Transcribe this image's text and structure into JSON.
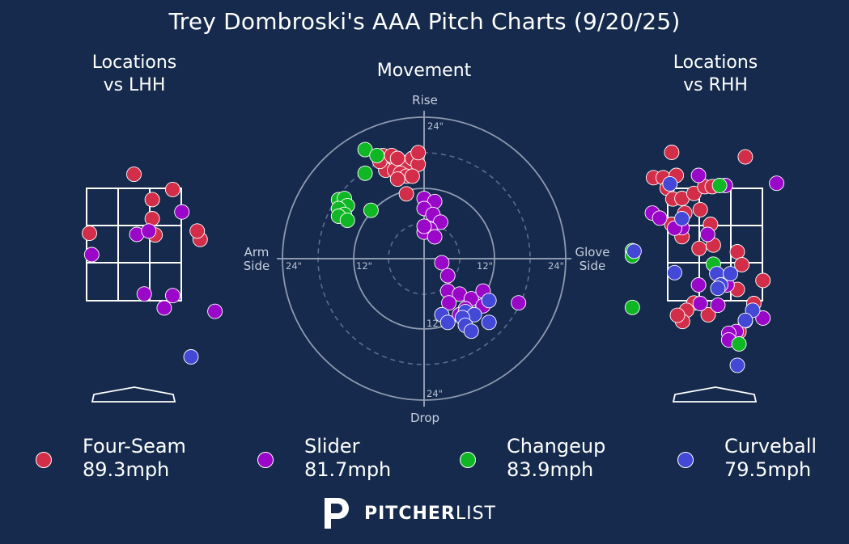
{
  "title": "Trey Dombroski's AAA Pitch Charts (9/20/25)",
  "panels": {
    "lhh_title": "Locations vs LHH",
    "movement_title": "Movement",
    "rhh_title": "Locations vs RHH"
  },
  "colors": {
    "background": "#152a4c",
    "Four-Seam": "#d22d49",
    "Slider": "#9a07c8",
    "Changeup": "#10b724",
    "Curveball": "#4348d6"
  },
  "legend": [
    {
      "pitch": "Four-Seam",
      "speed": "89.3mph"
    },
    {
      "pitch": "Slider",
      "speed": "81.7mph"
    },
    {
      "pitch": "Changeup",
      "speed": "83.9mph"
    },
    {
      "pitch": "Curveball",
      "speed": "79.5mph"
    }
  ],
  "logo": {
    "bold": "PITCHER",
    "light": "LIST",
    "icon": "pitcherlist-p-icon"
  },
  "chart_data": [
    {
      "type": "scatter",
      "name": "locations-vs-lhh",
      "title": "Locations vs LHH",
      "xlim": [
        -2.5,
        2.5
      ],
      "ylim": [
        -0.5,
        5.0
      ],
      "strike_zone": {
        "x": [
          -0.83,
          0.83
        ],
        "y": [
          1.5,
          3.5
        ]
      },
      "points": [
        {
          "pitch": "Four-Seam",
          "x": 0.0,
          "y": 3.75
        },
        {
          "pitch": "Four-Seam",
          "x": 0.68,
          "y": 3.48
        },
        {
          "pitch": "Four-Seam",
          "x": 0.32,
          "y": 3.3
        },
        {
          "pitch": "Four-Seam",
          "x": 0.32,
          "y": 2.96
        },
        {
          "pitch": "Four-Seam",
          "x": 0.37,
          "y": 2.67
        },
        {
          "pitch": "Four-Seam",
          "x": -0.78,
          "y": 2.7
        },
        {
          "pitch": "Four-Seam",
          "x": 1.16,
          "y": 2.59
        },
        {
          "pitch": "Four-Seam",
          "x": 1.11,
          "y": 2.74
        },
        {
          "pitch": "Slider",
          "x": 0.84,
          "y": 3.08
        },
        {
          "pitch": "Slider",
          "x": 0.05,
          "y": 2.68
        },
        {
          "pitch": "Slider",
          "x": 0.26,
          "y": 2.74
        },
        {
          "pitch": "Slider",
          "x": -0.74,
          "y": 2.32
        },
        {
          "pitch": "Slider",
          "x": 0.18,
          "y": 1.62
        },
        {
          "pitch": "Slider",
          "x": 0.68,
          "y": 1.59
        },
        {
          "pitch": "Slider",
          "x": 0.53,
          "y": 1.37
        },
        {
          "pitch": "Slider",
          "x": 1.42,
          "y": 1.31
        },
        {
          "pitch": "Curveball",
          "x": 1.0,
          "y": 0.5
        }
      ]
    },
    {
      "type": "scatter",
      "name": "movement",
      "title": "Movement",
      "xlabel_left": "Arm Side",
      "xlabel_right": "Glove Side",
      "ylabel_top": "Rise",
      "ylabel_bottom": "Drop",
      "rings": [
        6,
        12,
        18,
        24
      ],
      "ring_labels": [
        "12\"",
        "24\"",
        "12\"",
        "24\"",
        "24\"",
        "12\"",
        "24\""
      ],
      "xlim": [
        -24,
        24
      ],
      "ylim": [
        -24,
        24
      ],
      "points": [
        {
          "pitch": "Four-Seam",
          "x": -7,
          "y": 17.5
        },
        {
          "pitch": "Four-Seam",
          "x": -6,
          "y": 16
        },
        {
          "pitch": "Four-Seam",
          "x": -5,
          "y": 17
        },
        {
          "pitch": "Four-Seam",
          "x": -4,
          "y": 16.5
        },
        {
          "pitch": "Four-Seam",
          "x": -3,
          "y": 16
        },
        {
          "pitch": "Four-Seam",
          "x": -2,
          "y": 17
        },
        {
          "pitch": "Four-Seam",
          "x": -1,
          "y": 16
        },
        {
          "pitch": "Four-Seam",
          "x": -6.5,
          "y": 15
        },
        {
          "pitch": "Four-Seam",
          "x": -5,
          "y": 15
        },
        {
          "pitch": "Four-Seam",
          "x": -4,
          "y": 14.5
        },
        {
          "pitch": "Four-Seam",
          "x": -3,
          "y": 14
        },
        {
          "pitch": "Four-Seam",
          "x": -2,
          "y": 14
        },
        {
          "pitch": "Four-Seam",
          "x": -1,
          "y": 18
        },
        {
          "pitch": "Four-Seam",
          "x": -4.5,
          "y": 13.5
        },
        {
          "pitch": "Four-Seam",
          "x": -3,
          "y": 11
        },
        {
          "pitch": "Four-Seam",
          "x": -7.5,
          "y": 16.5
        },
        {
          "pitch": "Four-Seam",
          "x": -5.5,
          "y": 17.5
        },
        {
          "pitch": "Four-Seam",
          "x": -4.5,
          "y": 17
        },
        {
          "pitch": "Changeup",
          "x": -10,
          "y": 18.5
        },
        {
          "pitch": "Changeup",
          "x": -8,
          "y": 17.5
        },
        {
          "pitch": "Changeup",
          "x": -10,
          "y": 14.5
        },
        {
          "pitch": "Changeup",
          "x": -14.5,
          "y": 10
        },
        {
          "pitch": "Changeup",
          "x": -13.5,
          "y": 10.2
        },
        {
          "pitch": "Changeup",
          "x": -13,
          "y": 9
        },
        {
          "pitch": "Changeup",
          "x": -14.5,
          "y": 8.5
        },
        {
          "pitch": "Changeup",
          "x": -13.5,
          "y": 7.5
        },
        {
          "pitch": "Changeup",
          "x": -14.5,
          "y": 7.2
        },
        {
          "pitch": "Changeup",
          "x": -13,
          "y": 6.5
        },
        {
          "pitch": "Changeup",
          "x": -9,
          "y": 8.2
        },
        {
          "pitch": "Slider",
          "x": 0,
          "y": 10.2
        },
        {
          "pitch": "Slider",
          "x": 1.8,
          "y": 9.7
        },
        {
          "pitch": "Slider",
          "x": 0,
          "y": 8.5
        },
        {
          "pitch": "Slider",
          "x": 1.5,
          "y": 7.5
        },
        {
          "pitch": "Slider",
          "x": 2.8,
          "y": 6.2
        },
        {
          "pitch": "Slider",
          "x": 1,
          "y": 5
        },
        {
          "pitch": "Slider",
          "x": 0,
          "y": 4.5
        },
        {
          "pitch": "Slider",
          "x": 1.8,
          "y": 3.7
        },
        {
          "pitch": "Slider",
          "x": 0,
          "y": 5.5
        },
        {
          "pitch": "Slider",
          "x": 3,
          "y": -0.7
        },
        {
          "pitch": "Slider",
          "x": 4,
          "y": -2.9
        },
        {
          "pitch": "Slider",
          "x": 4,
          "y": -5.5
        },
        {
          "pitch": "Slider",
          "x": 6,
          "y": -6
        },
        {
          "pitch": "Slider",
          "x": 8,
          "y": -6.8
        },
        {
          "pitch": "Slider",
          "x": 10,
          "y": -5.5
        },
        {
          "pitch": "Slider",
          "x": 4.2,
          "y": -7.5
        },
        {
          "pitch": "Slider",
          "x": 7,
          "y": -8.5
        },
        {
          "pitch": "Slider",
          "x": 10,
          "y": -8
        },
        {
          "pitch": "Slider",
          "x": 16,
          "y": -7.5
        },
        {
          "pitch": "Slider",
          "x": 6,
          "y": -9.5
        },
        {
          "pitch": "Curveball",
          "x": 11,
          "y": -7.1
        },
        {
          "pitch": "Curveball",
          "x": 7,
          "y": -9
        },
        {
          "pitch": "Curveball",
          "x": 8.5,
          "y": -9.5
        },
        {
          "pitch": "Curveball",
          "x": 3,
          "y": -9.5
        },
        {
          "pitch": "Curveball",
          "x": 6.5,
          "y": -10
        },
        {
          "pitch": "Curveball",
          "x": 4,
          "y": -10.8
        },
        {
          "pitch": "Curveball",
          "x": 7,
          "y": -11.3
        },
        {
          "pitch": "Curveball",
          "x": 11,
          "y": -10.8
        },
        {
          "pitch": "Curveball",
          "x": 8,
          "y": -12.3
        }
      ]
    },
    {
      "type": "scatter",
      "name": "locations-vs-rhh",
      "title": "Locations vs RHH",
      "xlim": [
        -2.5,
        2.5
      ],
      "ylim": [
        -0.5,
        5.0
      ],
      "strike_zone": {
        "x": [
          -0.83,
          0.83
        ],
        "y": [
          1.5,
          3.5
        ]
      },
      "points": [
        {
          "pitch": "Four-Seam",
          "x": -0.76,
          "y": 4.14
        },
        {
          "pitch": "Four-Seam",
          "x": 0.53,
          "y": 4.06
        },
        {
          "pitch": "Four-Seam",
          "x": -1.08,
          "y": 3.69
        },
        {
          "pitch": "Four-Seam",
          "x": -0.91,
          "y": 3.69
        },
        {
          "pitch": "Four-Seam",
          "x": -0.68,
          "y": 3.73
        },
        {
          "pitch": "Four-Seam",
          "x": -0.84,
          "y": 3.5
        },
        {
          "pitch": "Four-Seam",
          "x": -0.74,
          "y": 3.31
        },
        {
          "pitch": "Four-Seam",
          "x": -0.58,
          "y": 3.32
        },
        {
          "pitch": "Four-Seam",
          "x": -0.37,
          "y": 3.41
        },
        {
          "pitch": "Four-Seam",
          "x": -0.18,
          "y": 3.53
        },
        {
          "pitch": "Four-Seam",
          "x": -0.05,
          "y": 3.53
        },
        {
          "pitch": "Four-Seam",
          "x": -0.26,
          "y": 3.12
        },
        {
          "pitch": "Four-Seam",
          "x": -0.53,
          "y": 3.06
        },
        {
          "pitch": "Four-Seam",
          "x": -0.76,
          "y": 2.86
        },
        {
          "pitch": "Four-Seam",
          "x": -0.58,
          "y": 2.64
        },
        {
          "pitch": "Four-Seam",
          "x": -0.08,
          "y": 2.86
        },
        {
          "pitch": "Four-Seam",
          "x": -0.28,
          "y": 2.43
        },
        {
          "pitch": "Four-Seam",
          "x": -0.03,
          "y": 2.49
        },
        {
          "pitch": "Four-Seam",
          "x": 0.39,
          "y": 2.37
        },
        {
          "pitch": "Four-Seam",
          "x": 0.47,
          "y": 2.14
        },
        {
          "pitch": "Four-Seam",
          "x": 0.84,
          "y": 1.86
        },
        {
          "pitch": "Four-Seam",
          "x": 0.39,
          "y": 1.7
        },
        {
          "pitch": "Four-Seam",
          "x": -0.37,
          "y": 1.46
        },
        {
          "pitch": "Four-Seam",
          "x": -0.5,
          "y": 1.33
        },
        {
          "pitch": "Four-Seam",
          "x": 0.68,
          "y": 1.45
        },
        {
          "pitch": "Four-Seam",
          "x": 0.53,
          "y": 1.14
        },
        {
          "pitch": "Four-Seam",
          "x": 0.42,
          "y": 0.95
        },
        {
          "pitch": "Four-Seam",
          "x": -0.12,
          "y": 1.25
        },
        {
          "pitch": "Four-Seam",
          "x": -0.57,
          "y": 1.13
        },
        {
          "pitch": "Four-Seam",
          "x": -0.66,
          "y": 1.24
        },
        {
          "pitch": "Slider",
          "x": -0.29,
          "y": 3.73
        },
        {
          "pitch": "Slider",
          "x": 0.18,
          "y": 3.55
        },
        {
          "pitch": "Slider",
          "x": 1.08,
          "y": 3.59
        },
        {
          "pitch": "Slider",
          "x": -1.1,
          "y": 3.06
        },
        {
          "pitch": "Slider",
          "x": -0.97,
          "y": 2.97
        },
        {
          "pitch": "Slider",
          "x": -0.58,
          "y": 2.8
        },
        {
          "pitch": "Slider",
          "x": -0.13,
          "y": 2.68
        },
        {
          "pitch": "Slider",
          "x": -0.71,
          "y": 2.79
        },
        {
          "pitch": "Slider",
          "x": -0.29,
          "y": 1.78
        },
        {
          "pitch": "Slider",
          "x": 0.21,
          "y": 1.78
        },
        {
          "pitch": "Slider",
          "x": 0.05,
          "y": 1.42
        },
        {
          "pitch": "Slider",
          "x": -0.26,
          "y": 1.45
        },
        {
          "pitch": "Slider",
          "x": 0.84,
          "y": 1.19
        },
        {
          "pitch": "Slider",
          "x": 0.37,
          "y": 0.95
        },
        {
          "pitch": "Slider",
          "x": 0.24,
          "y": 0.92
        },
        {
          "pitch": "Slider",
          "x": 0.24,
          "y": 0.8
        },
        {
          "pitch": "Changeup",
          "x": 0.08,
          "y": 3.55
        },
        {
          "pitch": "Changeup",
          "x": -0.03,
          "y": 2.15
        },
        {
          "pitch": "Changeup",
          "x": -1.45,
          "y": 2.39
        },
        {
          "pitch": "Changeup",
          "x": -1.45,
          "y": 2.3
        },
        {
          "pitch": "Changeup",
          "x": -1.45,
          "y": 1.38
        },
        {
          "pitch": "Changeup",
          "x": 0.42,
          "y": 0.73
        },
        {
          "pitch": "Curveball",
          "x": -0.79,
          "y": 3.58
        },
        {
          "pitch": "Curveball",
          "x": -0.58,
          "y": 2.96
        },
        {
          "pitch": "Curveball",
          "x": -0.71,
          "y": 2.0
        },
        {
          "pitch": "Curveball",
          "x": 0.03,
          "y": 1.98
        },
        {
          "pitch": "Curveball",
          "x": 0.27,
          "y": 1.98
        },
        {
          "pitch": "Curveball",
          "x": 0.1,
          "y": 1.78
        },
        {
          "pitch": "Curveball",
          "x": 0.05,
          "y": 1.72
        },
        {
          "pitch": "Curveball",
          "x": 0.66,
          "y": 1.33
        },
        {
          "pitch": "Curveball",
          "x": 0.53,
          "y": 1.15
        },
        {
          "pitch": "Curveball",
          "x": -1.42,
          "y": 2.38
        },
        {
          "pitch": "Curveball",
          "x": 0.39,
          "y": 0.35
        }
      ]
    }
  ]
}
